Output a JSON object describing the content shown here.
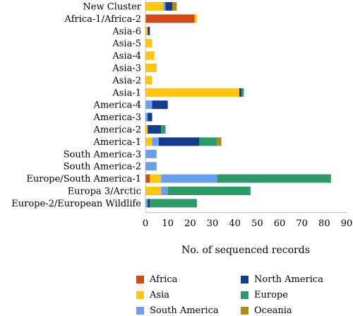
{
  "chart_data": {
    "type": "bar",
    "orientation": "horizontal",
    "stacked": true,
    "title": "",
    "xlabel": "No. of sequenced records",
    "ylabel": "",
    "xlim": [
      0,
      90
    ],
    "xticks": [
      0,
      10,
      20,
      30,
      40,
      50,
      60,
      70,
      80,
      90
    ],
    "grid": false,
    "legend_position": "bottom",
    "categories": [
      "New Cluster",
      "Africa-1/Africa-2",
      "Asia-6",
      "Asia-5",
      "Asia-4",
      "Asia-3",
      "Asia-2",
      "Asia-1",
      "America-4",
      "America-3",
      "America-2",
      "America-1",
      "South America-3",
      "South America-2",
      "Europe/South America-1",
      "Europa 3/Arctic",
      "Europe-2/European Wildlife"
    ],
    "series": [
      {
        "name": "Africa",
        "color": "#d24a17",
        "values": [
          0,
          22,
          0,
          0,
          0,
          0,
          0,
          0,
          0,
          0,
          0,
          0,
          0,
          0,
          2,
          0,
          0
        ]
      },
      {
        "name": "Asia",
        "color": "#ffc50f",
        "values": [
          8,
          1,
          1,
          3,
          4,
          5,
          3,
          42,
          0,
          0,
          1,
          3,
          0,
          0,
          5,
          7,
          0
        ]
      },
      {
        "name": "South America",
        "color": "#6d9eeb",
        "values": [
          1,
          0,
          0,
          0,
          0,
          0,
          0,
          0,
          3,
          1,
          0,
          3,
          5,
          5,
          25,
          3,
          1
        ]
      },
      {
        "name": "North America",
        "color": "#143c8c",
        "values": [
          3,
          0,
          1,
          0,
          0,
          0,
          0,
          1,
          7,
          2,
          6,
          18,
          0,
          0,
          0,
          0,
          1
        ]
      },
      {
        "name": "Europe",
        "color": "#2e9a6a",
        "values": [
          0,
          0,
          0,
          0,
          0,
          0,
          0,
          1,
          0,
          0,
          2,
          8,
          0,
          0,
          51,
          37,
          21
        ]
      },
      {
        "name": "Oceania",
        "color": "#b08c1a",
        "values": [
          2,
          0,
          0,
          0,
          0,
          0,
          0,
          0,
          0,
          0,
          0,
          2,
          0,
          0,
          0,
          0,
          0
        ]
      }
    ]
  }
}
